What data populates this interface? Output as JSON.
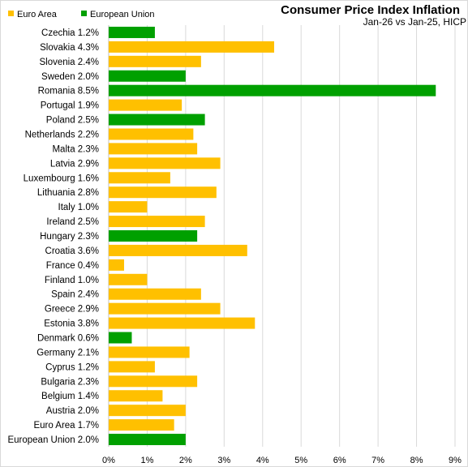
{
  "chart_data": {
    "type": "bar",
    "orientation": "horizontal",
    "title": "Consumer Price Index Inflation",
    "subtitle": "Jan-26 vs Jan-25, HICP",
    "legend": [
      {
        "name": "Euro Area",
        "color": "#FFC000"
      },
      {
        "name": "European Union",
        "color": "#00A000"
      }
    ],
    "legend_position": "top-left",
    "grid": true,
    "xlim": [
      0,
      9
    ],
    "x_ticks": [
      "0%",
      "1%",
      "2%",
      "3%",
      "4%",
      "5%",
      "6%",
      "7%",
      "8%",
      "9%"
    ],
    "categories": [
      "Czechia 1.2%",
      "Slovakia 4.3%",
      "Slovenia 2.4%",
      "Sweden 2.0%",
      "Romania 8.5%",
      "Portugal 1.9%",
      "Poland 2.5%",
      "Netherlands 2.2%",
      "Malta 2.3%",
      "Latvia 2.9%",
      "Luxembourg 1.6%",
      "Lithuania 2.8%",
      "Italy 1.0%",
      "Ireland 2.5%",
      "Hungary 2.3%",
      "Croatia 3.6%",
      "France 0.4%",
      "Finland 1.0%",
      "Spain 2.4%",
      "Greece 2.9%",
      "Estonia 3.8%",
      "Denmark 0.6%",
      "Germany 2.1%",
      "Cyprus 1.2%",
      "Bulgaria 2.3%",
      "Belgium 1.4%",
      "Austria 2.0%",
      "Euro Area 1.7%",
      "European Union 2.0%"
    ],
    "values": [
      1.2,
      4.3,
      2.4,
      2.0,
      8.5,
      1.9,
      2.5,
      2.2,
      2.3,
      2.9,
      1.6,
      2.8,
      1.0,
      2.5,
      2.3,
      3.6,
      0.4,
      1.0,
      2.4,
      2.9,
      3.8,
      0.6,
      2.1,
      1.2,
      2.3,
      1.4,
      2.0,
      1.7,
      2.0
    ],
    "groups": [
      "European Union",
      "Euro Area",
      "Euro Area",
      "European Union",
      "European Union",
      "Euro Area",
      "European Union",
      "Euro Area",
      "Euro Area",
      "Euro Area",
      "Euro Area",
      "Euro Area",
      "Euro Area",
      "Euro Area",
      "European Union",
      "Euro Area",
      "Euro Area",
      "Euro Area",
      "Euro Area",
      "Euro Area",
      "Euro Area",
      "European Union",
      "Euro Area",
      "Euro Area",
      "Euro Area",
      "Euro Area",
      "Euro Area",
      "Euro Area",
      "European Union"
    ]
  }
}
